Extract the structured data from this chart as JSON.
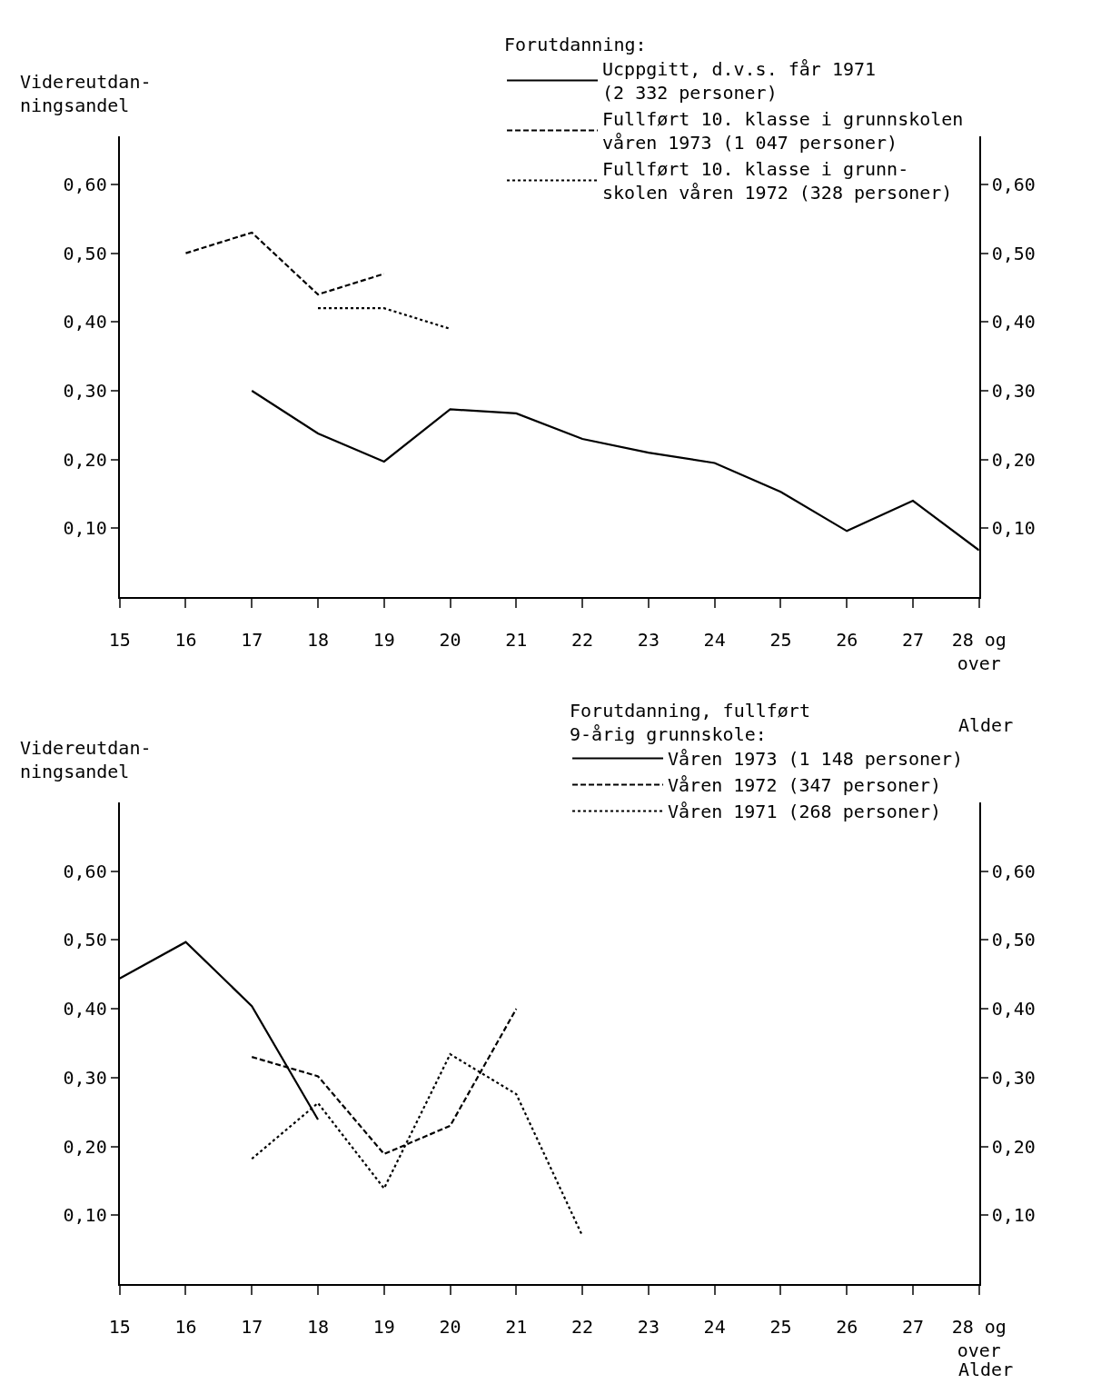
{
  "chart_data": [
    {
      "type": "line",
      "ylabel": "Videreutdan-\nningsandel",
      "xlabel": "Alder",
      "legend_title": "Forutdanning:",
      "legend": "top right",
      "grid": false,
      "marker": "none",
      "xlim": [
        15,
        28
      ],
      "xticks": [
        15,
        16,
        17,
        18,
        19,
        20,
        21,
        22,
        23,
        24,
        25,
        26,
        27,
        {
          "value": 28,
          "label": "28 og\nover"
        }
      ],
      "ylim": [
        0,
        0.67
      ],
      "yticks": [
        {
          "value": 0.1,
          "label": "0,10"
        },
        {
          "value": 0.2,
          "label": "0,20"
        },
        {
          "value": 0.3,
          "label": "0,30"
        },
        {
          "value": 0.4,
          "label": "0,40"
        },
        {
          "value": 0.5,
          "label": "0,50"
        },
        {
          "value": 0.6,
          "label": "0,60"
        }
      ],
      "y2lim": [
        0,
        0.67
      ],
      "y2ticks": [
        {
          "value": 0.1,
          "label": "0,10"
        },
        {
          "value": 0.2,
          "label": "0,20"
        },
        {
          "value": 0.3,
          "label": "0,30"
        },
        {
          "value": 0.4,
          "label": "0,40"
        },
        {
          "value": 0.5,
          "label": "0,50"
        },
        {
          "value": 0.6,
          "label": "0,60"
        }
      ],
      "series": [
        {
          "name": "Ucppgitt, d.v.s. får 1971\n(2 332 personer)",
          "color": "#000000",
          "line_style": "solid",
          "x": [
            17,
            18,
            19,
            20,
            21,
            22,
            23,
            24,
            25,
            26,
            27,
            28
          ],
          "values": [
            0.3,
            0.238,
            0.197,
            0.273,
            0.267,
            0.23,
            0.21,
            0.195,
            0.153,
            0.096,
            0.14,
            0.068
          ]
        },
        {
          "name": "Fullført 10. klasse i grunnskolen\nvåren 1973 (1 047 personer)",
          "color": "#000000",
          "line_style": "dashed",
          "x": [
            16,
            17,
            18,
            19
          ],
          "values": [
            0.5,
            0.53,
            0.44,
            0.47
          ]
        },
        {
          "name": "Fullført 10. klasse i grunn-\nskolen våren 1972 (328 personer)",
          "color": "#000000",
          "line_style": "dotted",
          "x": [
            18,
            19,
            20
          ],
          "values": [
            0.42,
            0.42,
            0.39
          ]
        }
      ]
    },
    {
      "type": "line",
      "ylabel": "Videreutdan-\nningsandel",
      "xlabel": "Alder",
      "legend_title": "Forutdanning, fullført\n9-årig grunnskole:",
      "legend": "top right",
      "grid": false,
      "marker": "none",
      "xlim": [
        15,
        28
      ],
      "xticks": [
        15,
        16,
        17,
        18,
        19,
        20,
        21,
        22,
        23,
        24,
        25,
        26,
        27,
        {
          "value": 28,
          "label": "28 og\nover"
        }
      ],
      "ylim": [
        0,
        0.7
      ],
      "yticks": [
        {
          "value": 0.1,
          "label": "0,10"
        },
        {
          "value": 0.2,
          "label": "0,20"
        },
        {
          "value": 0.3,
          "label": "0,30"
        },
        {
          "value": 0.4,
          "label": "0,40"
        },
        {
          "value": 0.5,
          "label": "0,50"
        },
        {
          "value": 0.6,
          "label": "0,60"
        }
      ],
      "y2lim": [
        0,
        0.7
      ],
      "y2ticks": [
        {
          "value": 0.1,
          "label": "0,10"
        },
        {
          "value": 0.2,
          "label": "0,20"
        },
        {
          "value": 0.3,
          "label": "0,30"
        },
        {
          "value": 0.4,
          "label": "0,40"
        },
        {
          "value": 0.5,
          "label": "0,50"
        },
        {
          "value": 0.6,
          "label": "0,60"
        }
      ],
      "series": [
        {
          "name": "Våren 1973 (1 148 personer)",
          "color": "#000000",
          "line_style": "solid",
          "x": [
            15,
            16,
            17,
            18
          ],
          "values": [
            0.444,
            0.497,
            0.404,
            0.239
          ]
        },
        {
          "name": "Våren 1972 (347 personer)",
          "color": "#000000",
          "line_style": "dashed",
          "x": [
            17,
            18,
            19,
            20,
            21
          ],
          "values": [
            0.33,
            0.302,
            0.189,
            0.23,
            0.4
          ]
        },
        {
          "name": "Våren 1971 (268 personer)",
          "color": "#000000",
          "line_style": "dotted",
          "x": [
            17,
            18,
            19,
            20,
            21,
            22
          ],
          "values": [
            0.182,
            0.263,
            0.139,
            0.334,
            0.276,
            0.07
          ]
        }
      ]
    }
  ]
}
